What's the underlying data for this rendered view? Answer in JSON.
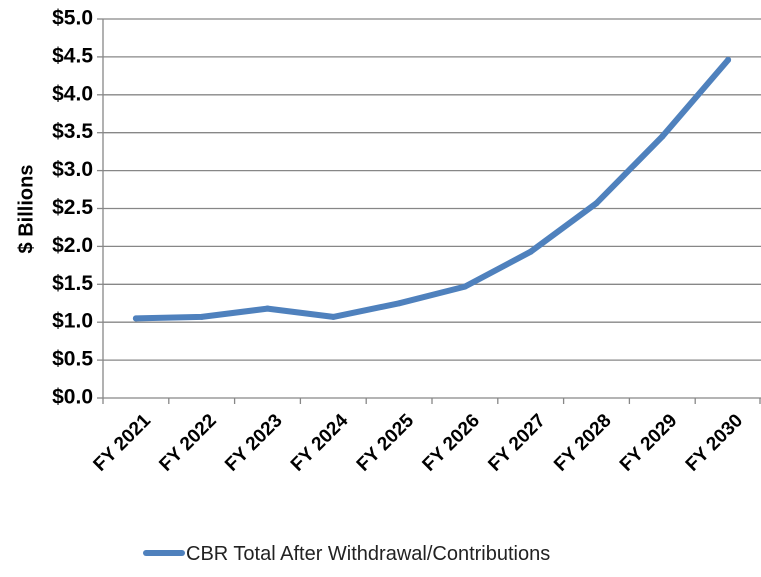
{
  "chart_data": {
    "type": "line",
    "title": "",
    "xlabel": "",
    "ylabel": "$ Billions",
    "categories": [
      "FY 2021",
      "FY 2022",
      "FY 2023",
      "FY 2024",
      "FY 2025",
      "FY 2026",
      "FY 2027",
      "FY 2028",
      "FY 2029",
      "FY 2030"
    ],
    "series": [
      {
        "name": "CBR Total After Withdrawal/Contributions",
        "color": "#4F81BD",
        "values": [
          1.05,
          1.07,
          1.18,
          1.07,
          1.25,
          1.47,
          1.93,
          2.57,
          3.45,
          4.46
        ]
      }
    ],
    "ylim": [
      0,
      5
    ],
    "y_ticks": [
      "$0.0",
      "$0.5",
      "$1.0",
      "$1.5",
      "$2.0",
      "$2.5",
      "$3.0",
      "$3.5",
      "$4.0",
      "$4.5",
      "$5.0"
    ],
    "y_tick_values": [
      0,
      0.5,
      1,
      1.5,
      2,
      2.5,
      3,
      3.5,
      4,
      4.5,
      5
    ],
    "grid": "horizontal",
    "legend_position": "bottom"
  }
}
